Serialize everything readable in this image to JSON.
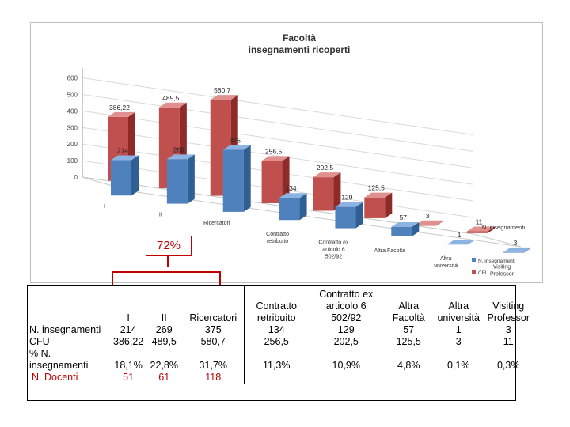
{
  "chart_data": {
    "type": "bar",
    "title": "Facoltà insegnamenti ricoperti",
    "title_lines": [
      "Facoltà",
      "insegnamenti ricoperti"
    ],
    "categories": [
      "I",
      "II",
      "Ricercatori",
      "Contratto retribuito",
      "Contratto ex articolo 6 502/92",
      "Altra Facoltà",
      "Altra università",
      "Visiting Professor"
    ],
    "category_label_lines": [
      [
        "I"
      ],
      [
        "II"
      ],
      [
        "Ricercatori"
      ],
      [
        "Contratto",
        "retribuito"
      ],
      [
        "Contratto ex",
        "articolo 6",
        "502/92"
      ],
      [
        "Altra Facolta"
      ],
      [
        "Altra",
        "università"
      ],
      [
        "Visiting",
        "Professor"
      ]
    ],
    "series": [
      {
        "name": "N. insegnamenti",
        "values": [
          214,
          269,
          375,
          134,
          129,
          57,
          1,
          3
        ],
        "labels": [
          "214",
          "269",
          "375",
          "134",
          "129",
          "57",
          "1",
          "3"
        ],
        "color": "#4f81bd"
      },
      {
        "name": "CFU",
        "values": [
          386.22,
          489.5,
          580.7,
          256.5,
          202.5,
          125.5,
          3,
          11
        ],
        "labels": [
          "386,22",
          "489,5",
          "580,7",
          "256,5",
          "202,5",
          "125,5",
          "3",
          "11"
        ],
        "color": "#c0504d"
      }
    ],
    "legend_names": [
      "N. insegnamenti",
      "CFU"
    ],
    "depth_axis_label": "N. insegnamenti",
    "yticks": [
      "0",
      "100",
      "200",
      "300",
      "400",
      "500",
      "600"
    ],
    "ylim": [
      0,
      600
    ],
    "grid": true,
    "legend_position": "right"
  },
  "annotation": {
    "percent": "72%",
    "color": "#c00000"
  },
  "table": {
    "headers": [
      "I",
      "II",
      "Ricercatori",
      "Contratto\nretribuito",
      "Contratto ex\narticolo 6\n502/92",
      "Altra\nFacoltà",
      "Altra\nuniversità",
      "Visiting\nProfessor"
    ],
    "rows": [
      {
        "label": "N. insegnamenti",
        "label_color": "#000000",
        "values": [
          "214",
          "269",
          "375",
          "134",
          "129",
          "57",
          "1",
          "3"
        ]
      },
      {
        "label": "CFU",
        "label_color": "#000000",
        "values": [
          "386,22",
          "489,5",
          "580,7",
          "256,5",
          "202,5",
          "125,5",
          "3",
          "11"
        ]
      },
      {
        "label": "% N. insegnamenti",
        "label_color": "#000000",
        "values": [
          "18,1%",
          "22,8%",
          "31,7%",
          "11,3%",
          "10,9%",
          "4,8%",
          "0,1%",
          "0,3%"
        ]
      },
      {
        "label": "N. Docenti",
        "label_color": "#c00000",
        "values": [
          "51",
          "61",
          "118",
          "",
          "",
          "",
          "",
          ""
        ]
      }
    ]
  }
}
